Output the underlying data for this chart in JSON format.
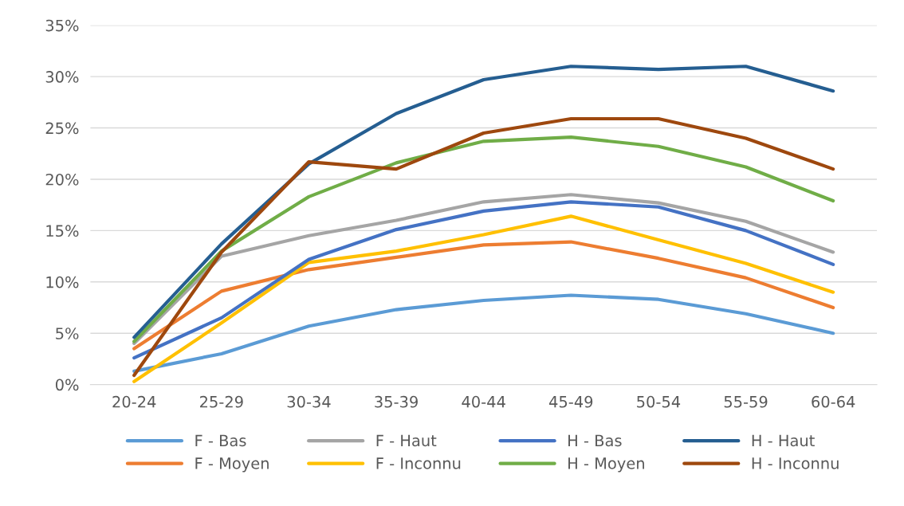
{
  "chart_data": {
    "type": "line",
    "categories": [
      "20-24",
      "25-29",
      "30-34",
      "35-39",
      "40-44",
      "45-49",
      "50-54",
      "55-59",
      "60-64"
    ],
    "series": [
      {
        "name": "F - Bas",
        "color": "#5b9bd5",
        "values": [
          1.3,
          3.0,
          5.7,
          7.3,
          8.2,
          8.7,
          8.3,
          6.9,
          5.0
        ]
      },
      {
        "name": "F - Moyen",
        "color": "#ed7d31",
        "values": [
          3.5,
          9.1,
          11.2,
          12.4,
          13.6,
          13.9,
          12.3,
          10.4,
          7.5
        ]
      },
      {
        "name": "F - Haut",
        "color": "#a5a5a5",
        "values": [
          4.0,
          12.5,
          14.5,
          16.0,
          17.8,
          18.5,
          17.7,
          15.9,
          12.9
        ]
      },
      {
        "name": "F - Inconnu",
        "color": "#ffc000",
        "values": [
          0.3,
          6.0,
          11.9,
          13.0,
          14.6,
          16.4,
          14.1,
          11.8,
          9.0
        ]
      },
      {
        "name": "H - Bas",
        "color": "#4472c4",
        "values": [
          2.6,
          6.5,
          12.2,
          15.1,
          16.9,
          17.8,
          17.3,
          15.0,
          11.7
        ]
      },
      {
        "name": "H - Moyen",
        "color": "#70ad47",
        "values": [
          4.2,
          13.0,
          18.3,
          21.6,
          23.7,
          24.1,
          23.2,
          21.2,
          17.9
        ]
      },
      {
        "name": "H - Haut",
        "color": "#255e91",
        "values": [
          4.6,
          13.7,
          21.5,
          26.4,
          29.7,
          31.0,
          30.7,
          31.0,
          28.6
        ]
      },
      {
        "name": "H - Inconnu",
        "color": "#9e480e",
        "values": [
          0.9,
          12.9,
          21.7,
          21.0,
          24.5,
          25.9,
          25.9,
          24.0,
          21.0
        ]
      }
    ],
    "ylim": [
      0,
      35
    ],
    "yticks": [
      {
        "value": 0,
        "label": "0%"
      },
      {
        "value": 5,
        "label": "5%"
      },
      {
        "value": 10,
        "label": "10%"
      },
      {
        "value": 15,
        "label": "15%"
      },
      {
        "value": 20,
        "label": "20%"
      },
      {
        "value": 25,
        "label": "25%"
      },
      {
        "value": 30,
        "label": "30%"
      },
      {
        "value": 35,
        "label": "35%"
      }
    ],
    "grid": "y",
    "legend": "bottom",
    "marker": "none",
    "line_style": "solid"
  }
}
